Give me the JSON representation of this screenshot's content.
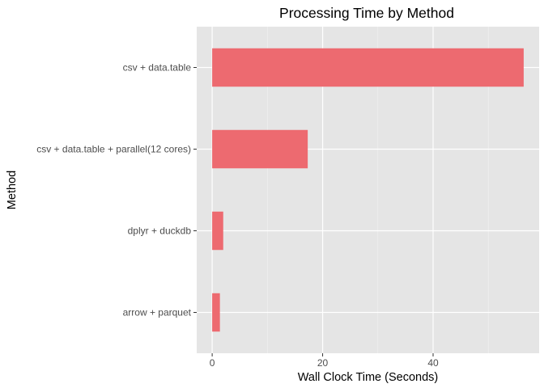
{
  "chart_data": {
    "type": "bar",
    "orientation": "horizontal",
    "title": "Processing Time by Method",
    "xlabel": "Wall Clock Time (Seconds)",
    "ylabel": "Method",
    "categories": [
      "csv + data.table",
      "csv + data.table + parallel(12 cores)",
      "dplyr + duckdb",
      "arrow + parquet"
    ],
    "values": [
      56.4,
      17.3,
      2.0,
      1.4
    ],
    "xlim": [
      -2.8,
      59.2
    ],
    "xticks": [
      0,
      20,
      40
    ],
    "bar_color": "#ED6A70",
    "panel_background": "#E5E5E5",
    "grid": true,
    "legend": "none"
  }
}
